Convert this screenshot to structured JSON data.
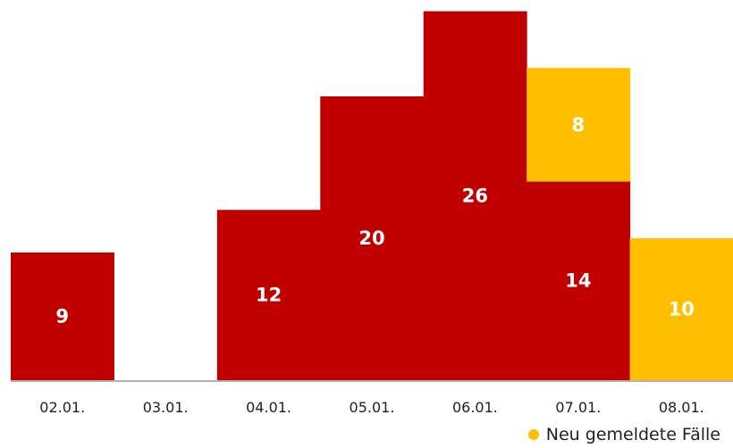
{
  "chart_data": {
    "type": "bar",
    "stacked": true,
    "categories": [
      "02.01.",
      "03.01.",
      "04.01.",
      "05.01.",
      "06.01.",
      "07.01.",
      "08.01."
    ],
    "series": [
      {
        "key": "existing",
        "color": "#c00000",
        "values": [
          9,
          0,
          12,
          20,
          26,
          14,
          0
        ],
        "show_labels": [
          true,
          false,
          true,
          true,
          true,
          true,
          false
        ]
      },
      {
        "key": "new",
        "name": "Neu gemeldete Fälle",
        "color": "#ffbf00",
        "values": [
          0,
          0,
          0,
          0,
          0,
          8,
          10
        ],
        "show_labels": [
          false,
          false,
          false,
          false,
          false,
          true,
          true
        ]
      }
    ],
    "ylim": [
      0,
      30
    ],
    "grid": false,
    "legend_position": "bottom-right"
  }
}
